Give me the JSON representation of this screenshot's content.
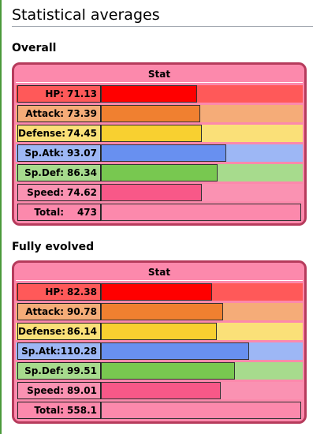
{
  "page": {
    "title": "Statistical averages"
  },
  "column_header": "Stat",
  "colors": {
    "box_bg": "#fc89ac",
    "box_border": "#b63b5c"
  },
  "sections": [
    {
      "title": "Overall",
      "stats": [
        {
          "name": "HP:",
          "value": "71.13",
          "num": 71.13,
          "light": "#ff5959",
          "bar": "#ff0000"
        },
        {
          "name": "Attack:",
          "value": "73.39",
          "num": 73.39,
          "light": "#f5ac78",
          "bar": "#f08030"
        },
        {
          "name": "Defense:",
          "value": "74.45",
          "num": 74.45,
          "light": "#fae078",
          "bar": "#f8d030"
        },
        {
          "name": "Sp.Atk:",
          "value": "93.07",
          "num": 93.07,
          "light": "#9db7f5",
          "bar": "#6890f0"
        },
        {
          "name": "Sp.Def:",
          "value": "86.34",
          "num": 86.34,
          "light": "#a7db8d",
          "bar": "#78c850"
        },
        {
          "name": "Speed:",
          "value": "74.62",
          "num": 74.62,
          "light": "#fa92b2",
          "bar": "#f85888"
        }
      ],
      "total": {
        "name": "Total:",
        "value": "473"
      }
    },
    {
      "title": "Fully evolved",
      "stats": [
        {
          "name": "HP:",
          "value": "82.38",
          "num": 82.38,
          "light": "#ff5959",
          "bar": "#ff0000"
        },
        {
          "name": "Attack:",
          "value": "90.78",
          "num": 90.78,
          "light": "#f5ac78",
          "bar": "#f08030"
        },
        {
          "name": "Defense:",
          "value": "86.14",
          "num": 86.14,
          "light": "#fae078",
          "bar": "#f8d030"
        },
        {
          "name": "Sp.Atk:",
          "value": "110.28",
          "num": 110.28,
          "light": "#9db7f5",
          "bar": "#6890f0"
        },
        {
          "name": "Sp.Def:",
          "value": "99.51",
          "num": 99.51,
          "light": "#a7db8d",
          "bar": "#78c850"
        },
        {
          "name": "Speed:",
          "value": "89.01",
          "num": 89.01,
          "light": "#fa92b2",
          "bar": "#f85888"
        }
      ],
      "total": {
        "name": "Total:",
        "value": "558.1"
      }
    }
  ]
}
